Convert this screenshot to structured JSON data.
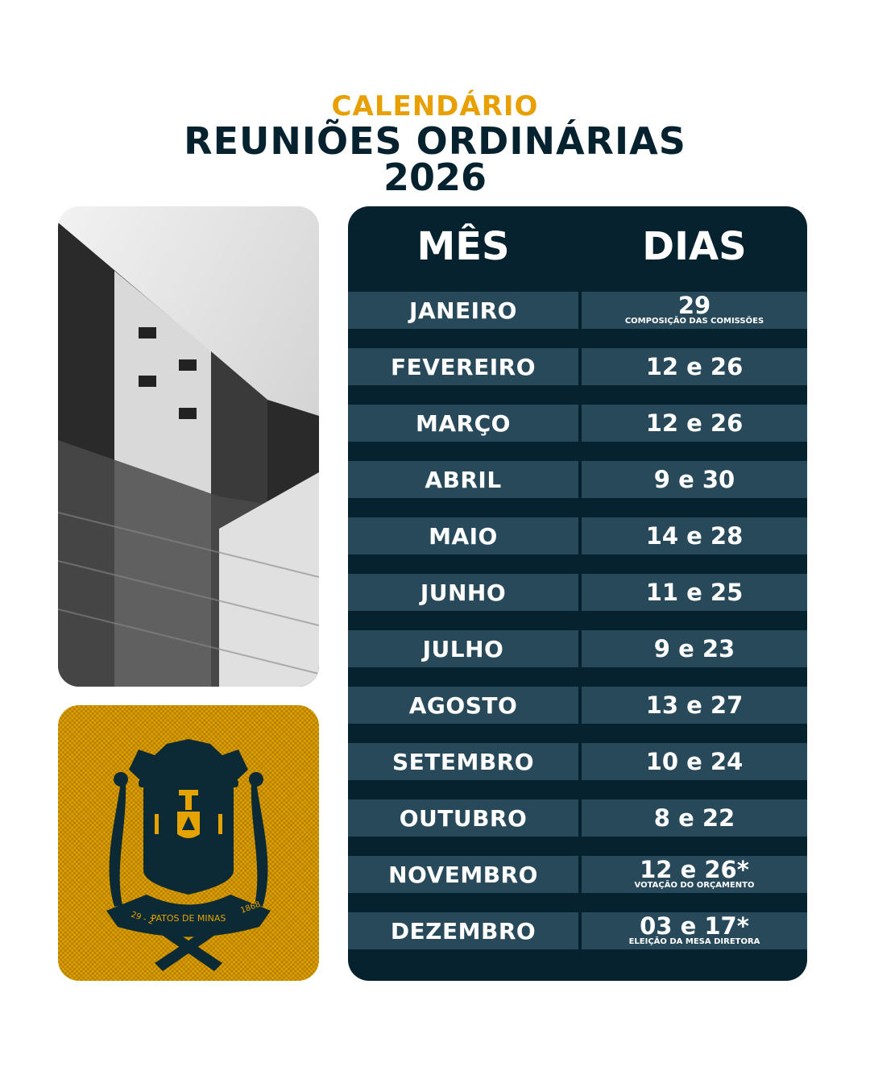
{
  "header": {
    "line1": "CALENDÁRIO",
    "line2": "REUNIÕES ORDINÁRIAS",
    "line3": "2026"
  },
  "colors": {
    "accent": "#e89f00",
    "dark": "#06222f",
    "row": "#27495a"
  },
  "table": {
    "col_month": "MÊS",
    "col_days": "DIAS",
    "rows": [
      {
        "month": "JANEIRO",
        "days": "29",
        "note": "COMPOSIÇÃO DAS COMISSÕES"
      },
      {
        "month": "FEVEREIRO",
        "days": "12 e 26"
      },
      {
        "month": "MARÇO",
        "days": "12 e 26"
      },
      {
        "month": "ABRIL",
        "days": "9 e 30"
      },
      {
        "month": "MAIO",
        "days": "14 e 28"
      },
      {
        "month": "JUNHO",
        "days": "11 e 25"
      },
      {
        "month": "JULHO",
        "days": "9 e 23"
      },
      {
        "month": "AGOSTO",
        "days": "13 e 27"
      },
      {
        "month": "SETEMBRO",
        "days": "10 e 24"
      },
      {
        "month": "OUTUBRO",
        "days": "8 e 22"
      },
      {
        "month": "NOVEMBRO",
        "days": "12 e 26*",
        "note": "VOTAÇÃO DO ORÇAMENTO"
      },
      {
        "month": "DEZEMBRO",
        "days": "03 e 17*",
        "note": "ELEIÇÃO DA MESA DIRETORA"
      }
    ]
  },
  "crest": {
    "name": "PATOS DE MINAS",
    "date_left": "29 - 2",
    "date_right": "1868"
  },
  "photo": {
    "icon": "building-photo"
  }
}
